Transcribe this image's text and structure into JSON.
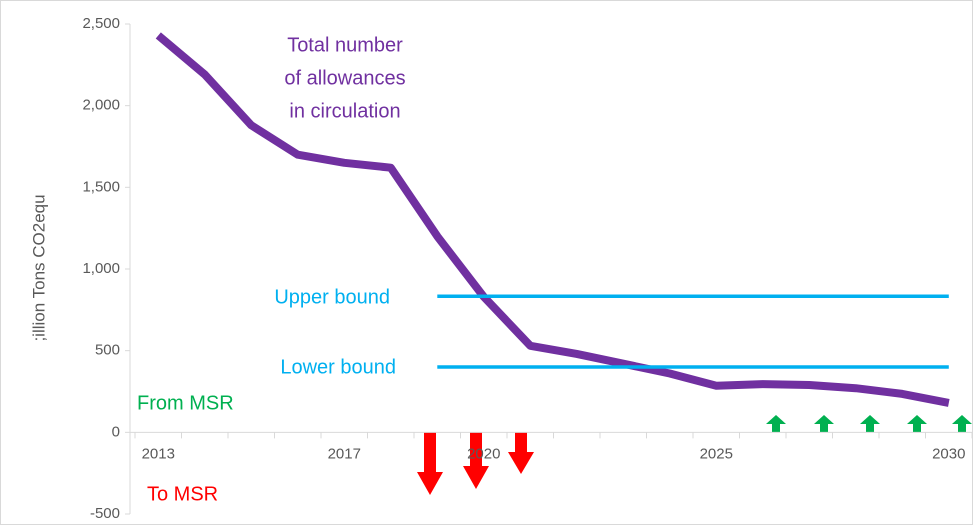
{
  "chart_data": {
    "type": "line",
    "y_label": ";illion Tons CO2equ",
    "categories": [
      "2013",
      null,
      null,
      null,
      "2017",
      null,
      null,
      "2020",
      null,
      null,
      null,
      null,
      "2025",
      null,
      null,
      null,
      null,
      "2030"
    ],
    "series": [
      {
        "name": "Total number of allowances in circulation",
        "color": "#7030a0",
        "values": [
          2430,
          2190,
          1880,
          1700,
          1650,
          1620,
          1200,
          830,
          530,
          480,
          420,
          360,
          285,
          295,
          290,
          270,
          235,
          180
        ]
      },
      {
        "name": "Upper bound",
        "color": "#00b0f0",
        "values": [
          null,
          null,
          null,
          null,
          null,
          null,
          833,
          833,
          833,
          833,
          833,
          833,
          833,
          833,
          833,
          833,
          833,
          833
        ]
      },
      {
        "name": "Lower bound",
        "color": "#00b0f0",
        "values": [
          null,
          null,
          null,
          null,
          null,
          null,
          400,
          400,
          400,
          400,
          400,
          400,
          400,
          400,
          400,
          400,
          400,
          400
        ]
      }
    ],
    "annotations": {
      "total": [
        "Total number",
        "of allowances",
        "in circulation"
      ],
      "from_msr": "From MSR",
      "to_msr": "To MSR"
    },
    "ylim": [
      -500,
      2500
    ],
    "yticks": [
      -500,
      0,
      {
        "value": 500,
        "label": "500"
      },
      {
        "value": 1000,
        "label": "1,000"
      },
      {
        "value": 1500,
        "label": "1,500"
      },
      {
        "value": 2000,
        "label": "2,000"
      },
      {
        "value": 2500,
        "label": "2,500"
      }
    ]
  }
}
